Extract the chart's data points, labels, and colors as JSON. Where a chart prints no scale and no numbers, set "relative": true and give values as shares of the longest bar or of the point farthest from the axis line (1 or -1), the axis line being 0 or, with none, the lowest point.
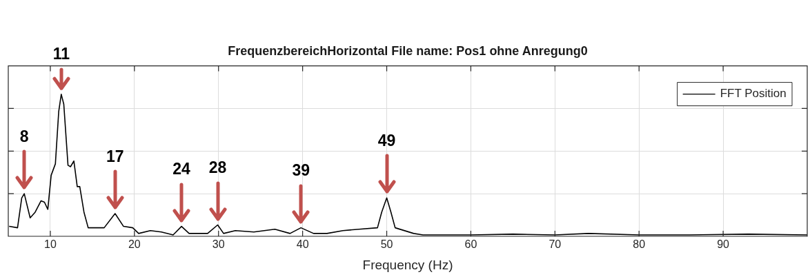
{
  "chart_data": {
    "type": "line",
    "title": "FrequenzbereichHorizontal File name: Pos1 ohne Anregung0",
    "xlabel": "Frequency (Hz)",
    "relative": true,
    "xlim": [
      5,
      100
    ],
    "xticks": [
      10,
      20,
      30,
      40,
      50,
      60,
      70,
      80,
      90
    ],
    "grid": true,
    "legend": "top right",
    "series": [
      {
        "name": "FFT Position",
        "color": "#000000",
        "x": [
          5.1,
          6.1,
          6.6,
          6.9,
          7.6,
          8.2,
          8.9,
          9.3,
          9.7,
          10.1,
          10.6,
          11.0,
          11.3,
          11.6,
          12.1,
          12.4,
          12.8,
          13.2,
          13.5,
          14.0,
          14.5,
          15.4,
          16.4,
          17.7,
          18.7,
          19.8,
          20.5,
          21.9,
          23.2,
          24.6,
          25.6,
          26.5,
          28.1,
          28.7,
          29.9,
          30.6,
          32.0,
          34.2,
          36.7,
          38.5,
          39.8,
          41.3,
          42.9,
          44.8,
          46.7,
          48.9,
          49.4,
          50.0,
          50.5,
          51.0,
          53.2,
          54.3,
          60,
          65,
          70,
          74,
          80,
          86,
          93,
          100
        ],
        "values": [
          0.07,
          0.06,
          0.27,
          0.3,
          0.13,
          0.17,
          0.25,
          0.24,
          0.19,
          0.43,
          0.51,
          0.88,
          1.0,
          0.93,
          0.5,
          0.49,
          0.53,
          0.35,
          0.35,
          0.17,
          0.06,
          0.06,
          0.06,
          0.16,
          0.07,
          0.06,
          0.02,
          0.04,
          0.03,
          0.01,
          0.07,
          0.02,
          0.02,
          0.02,
          0.08,
          0.02,
          0.04,
          0.03,
          0.05,
          0.02,
          0.06,
          0.02,
          0.02,
          0.04,
          0.05,
          0.06,
          0.17,
          0.27,
          0.17,
          0.06,
          0.02,
          0.01,
          0.01,
          0.015,
          0.01,
          0.02,
          0.01,
          0.01,
          0.015,
          0.01
        ]
      }
    ],
    "annotations": [
      {
        "text": "8",
        "x": 6.9,
        "y": 0.3
      },
      {
        "text": "11",
        "x": 11.3,
        "y": 1.0
      },
      {
        "text": "17",
        "x": 17.7,
        "y": 0.16
      },
      {
        "text": "24",
        "x": 25.6,
        "y": 0.07
      },
      {
        "text": "28",
        "x": 29.9,
        "y": 0.08
      },
      {
        "text": "39",
        "x": 39.8,
        "y": 0.06
      },
      {
        "text": "49",
        "x": 50.0,
        "y": 0.27
      }
    ]
  }
}
